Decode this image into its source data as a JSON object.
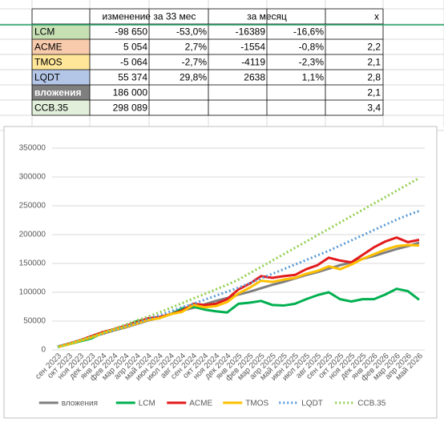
{
  "table": {
    "header": {
      "change_total": "изменение за 33 мес",
      "change_month": "за месяц",
      "ratio": "x"
    },
    "rows": [
      {
        "name": "LCM",
        "color": "#c6e0b4",
        "total": "-98 650",
        "total_pct": "-53,0%",
        "month": "-16389",
        "month_pct": "-16,6%"
      },
      {
        "name": "ACME",
        "color": "#f8cbad",
        "total": "5 054",
        "total_pct": "2,7%",
        "month": "-1554",
        "month_pct": "-0,8%",
        "ratio": "2,2"
      },
      {
        "name": "TMOS",
        "color": "#ffe699",
        "total": "-5 064",
        "total_pct": "-2,7%",
        "month": "-4119",
        "month_pct": "-2,3%",
        "ratio": "2,1"
      },
      {
        "name": "LQDT",
        "color": "#b4c6e7",
        "total": "55 374",
        "total_pct": "29,8%",
        "month": "2638",
        "month_pct": "1,1%",
        "ratio": "2,8"
      },
      {
        "name": "вложения",
        "color": "#7f7f7f",
        "total": "186 000",
        "ratio": "2,1"
      },
      {
        "name": "ССВ.35",
        "color": "#e2efda",
        "total": "298 089",
        "ratio": "3,4"
      }
    ]
  },
  "chart_data": {
    "type": "line",
    "categories": [
      "сен 2023",
      "окт 2023",
      "ноя 2023",
      "дек 2023",
      "янв 2024",
      "фев 2024",
      "мар 2024",
      "апр 2024",
      "май 2024",
      "июн 2024",
      "июл 2024",
      "авг 2024",
      "сен 2024",
      "окт 2024",
      "ноя 2024",
      "дек 2024",
      "янв 2025",
      "фев 2025",
      "мар 2025",
      "апр 2025",
      "май 2025",
      "июн 2025",
      "июл 2025",
      "авг 2025",
      "сен 2025",
      "окт 2025",
      "ноя 2025",
      "дек 2025",
      "янв 2026",
      "фев 2026",
      "мар 2026",
      "апр 2026",
      "май 2026"
    ],
    "ylim": [
      0,
      350000
    ],
    "yticks": [
      0,
      50000,
      100000,
      150000,
      200000,
      250000,
      300000,
      350000
    ],
    "grid": true,
    "legend": "bottom",
    "series": [
      {
        "name": "вложения",
        "color": "#7f7f7f",
        "dash": "solid",
        "values": [
          6000,
          11000,
          17000,
          23000,
          28000,
          34000,
          39000,
          45000,
          51000,
          56000,
          62000,
          68000,
          73000,
          79000,
          85000,
          90000,
          96000,
          101000,
          107000,
          113000,
          118000,
          124000,
          130000,
          135000,
          141000,
          147000,
          152000,
          158000,
          163000,
          169000,
          175000,
          180000,
          186000
        ]
      },
      {
        "name": "LCM",
        "color": "#00b050",
        "dash": "solid",
        "values": [
          5000,
          10000,
          15000,
          20000,
          30000,
          35000,
          40000,
          50000,
          53000,
          55000,
          62000,
          72000,
          75000,
          70000,
          67000,
          65000,
          80000,
          82000,
          85000,
          78000,
          77000,
          80000,
          88000,
          95000,
          100000,
          88000,
          84000,
          88000,
          88000,
          96000,
          106000,
          102000,
          87000
        ]
      },
      {
        "name": "ACME",
        "color": "#e31a1c",
        "dash": "solid",
        "values": [
          5000,
          11000,
          17000,
          24000,
          31000,
          36000,
          42000,
          48000,
          55000,
          57000,
          62000,
          68000,
          80000,
          78000,
          80000,
          88000,
          105000,
          115000,
          128000,
          125000,
          128000,
          130000,
          140000,
          147000,
          160000,
          155000,
          152000,
          165000,
          178000,
          188000,
          195000,
          187000,
          191000
        ]
      },
      {
        "name": "TMOS",
        "color": "#ffc000",
        "dash": "solid",
        "values": [
          5000,
          10000,
          16000,
          22000,
          29000,
          35000,
          40000,
          46000,
          52000,
          55000,
          62000,
          66000,
          78000,
          74000,
          76000,
          83000,
          98000,
          108000,
          120000,
          118000,
          122000,
          125000,
          132000,
          137000,
          145000,
          140000,
          148000,
          158000,
          166000,
          174000,
          180000,
          182000,
          181000
        ]
      },
      {
        "name": "LQDT",
        "color": "#5b9bd5",
        "dash": "dotted",
        "values": [
          5000,
          11000,
          17000,
          23000,
          29000,
          35000,
          41000,
          47000,
          54000,
          60000,
          67000,
          74000,
          80000,
          87000,
          94000,
          101000,
          108000,
          116000,
          124000,
          132000,
          140000,
          148000,
          156000,
          164000,
          172000,
          181000,
          190000,
          199000,
          208000,
          217000,
          226000,
          234000,
          241000
        ]
      },
      {
        "name": "ССВ.35",
        "color": "#92d050",
        "dash": "dotted",
        "values": [
          5000,
          11000,
          17000,
          23000,
          30000,
          37000,
          44000,
          51000,
          58000,
          65000,
          73000,
          81000,
          89000,
          97000,
          105000,
          113000,
          122000,
          133000,
          144000,
          155000,
          166000,
          177000,
          188000,
          199000,
          210000,
          221000,
          232000,
          243000,
          254000,
          265000,
          276000,
          287000,
          298000
        ]
      }
    ]
  }
}
